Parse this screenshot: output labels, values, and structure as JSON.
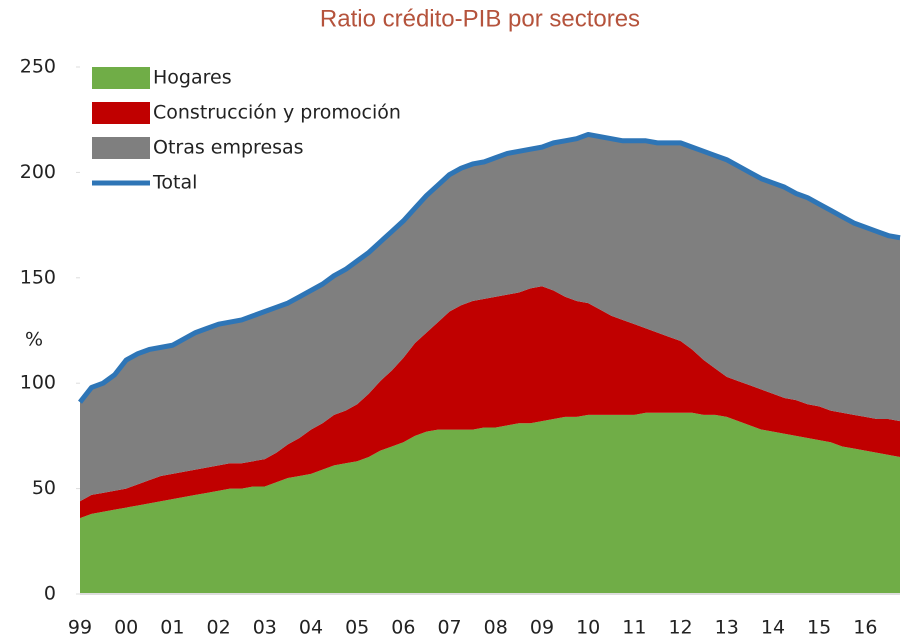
{
  "chart_data": {
    "type": "stacked_area",
    "title": "Ratio crédito-PIB por sectores",
    "y_label": "%",
    "categories": [
      "99",
      null,
      null,
      null,
      "00",
      null,
      null,
      null,
      "01",
      null,
      null,
      null,
      "02",
      null,
      null,
      null,
      "03",
      null,
      null,
      null,
      "04",
      null,
      null,
      null,
      "05",
      null,
      null,
      null,
      "06",
      null,
      null,
      null,
      "07",
      null,
      null,
      null,
      "08",
      null,
      null,
      null,
      "09",
      null,
      null,
      null,
      "10",
      null,
      null,
      null,
      "11",
      null,
      null,
      null,
      "12",
      null,
      null,
      null,
      "13",
      null,
      null,
      null,
      "14",
      null,
      null,
      null,
      "15",
      null,
      null,
      null,
      "16",
      null,
      null,
      null
    ],
    "series": [
      {
        "name": "Hogares",
        "color": "#70ad47",
        "values": [
          36,
          38,
          39,
          40,
          41,
          42,
          43,
          44,
          45,
          46,
          47,
          48,
          49,
          50,
          50,
          51,
          51,
          53,
          55,
          56,
          57,
          59,
          61,
          62,
          63,
          65,
          68,
          70,
          72,
          75,
          77,
          78,
          78,
          78,
          78,
          79,
          79,
          80,
          81,
          81,
          82,
          83,
          84,
          84,
          85,
          85,
          85,
          85,
          85,
          86,
          86,
          86,
          86,
          86,
          85,
          85,
          84,
          82,
          80,
          78,
          77,
          76,
          75,
          74,
          73,
          72,
          70,
          69,
          68,
          67,
          66,
          65
        ]
      },
      {
        "name": "Construcción y promoción",
        "color": "#c00000",
        "values": [
          8,
          9,
          9,
          9,
          9,
          10,
          11,
          12,
          12,
          12,
          12,
          12,
          12,
          12,
          12,
          12,
          13,
          14,
          16,
          18,
          21,
          22,
          24,
          25,
          27,
          30,
          33,
          36,
          40,
          44,
          47,
          51,
          56,
          59,
          61,
          61,
          62,
          62,
          62,
          64,
          64,
          61,
          57,
          55,
          53,
          50,
          47,
          45,
          43,
          40,
          38,
          36,
          34,
          30,
          26,
          22,
          19,
          19,
          19,
          19,
          18,
          17,
          17,
          16,
          16,
          15,
          16,
          16,
          16,
          16,
          17,
          17
        ]
      },
      {
        "name": "Otras empresas",
        "color": "#7f7f7f",
        "values": [
          47,
          51,
          52,
          55,
          61,
          62,
          62,
          61,
          61,
          63,
          65,
          66,
          67,
          67,
          68,
          69,
          70,
          69,
          67,
          67,
          66,
          66,
          66,
          67,
          68,
          67,
          66,
          66,
          65,
          64,
          65,
          65,
          65,
          65,
          65,
          65,
          66,
          67,
          67,
          66,
          66,
          70,
          74,
          77,
          80,
          82,
          84,
          85,
          87,
          89,
          90,
          92,
          94,
          96,
          99,
          101,
          103,
          102,
          101,
          100,
          100,
          100,
          98,
          98,
          96,
          95,
          93,
          91,
          90,
          89,
          87,
          87
        ]
      },
      {
        "name": "Total",
        "color": "#2e75b6",
        "line": true,
        "values": [
          91,
          98,
          100,
          104,
          111,
          114,
          116,
          117,
          118,
          121,
          124,
          126,
          128,
          129,
          130,
          132,
          134,
          136,
          138,
          141,
          144,
          147,
          151,
          154,
          158,
          162,
          167,
          172,
          177,
          183,
          189,
          194,
          199,
          202,
          204,
          205,
          207,
          209,
          210,
          211,
          212,
          214,
          215,
          216,
          218,
          217,
          216,
          215,
          215,
          215,
          214,
          214,
          214,
          212,
          210,
          208,
          206,
          203,
          200,
          197,
          195,
          193,
          190,
          188,
          185,
          182,
          179,
          176,
          174,
          172,
          170,
          169
        ]
      }
    ],
    "ylim": [
      0,
      250
    ],
    "yticks": [
      0,
      50,
      100,
      150,
      200,
      250
    ],
    "grid": false,
    "legend": "top-left"
  }
}
